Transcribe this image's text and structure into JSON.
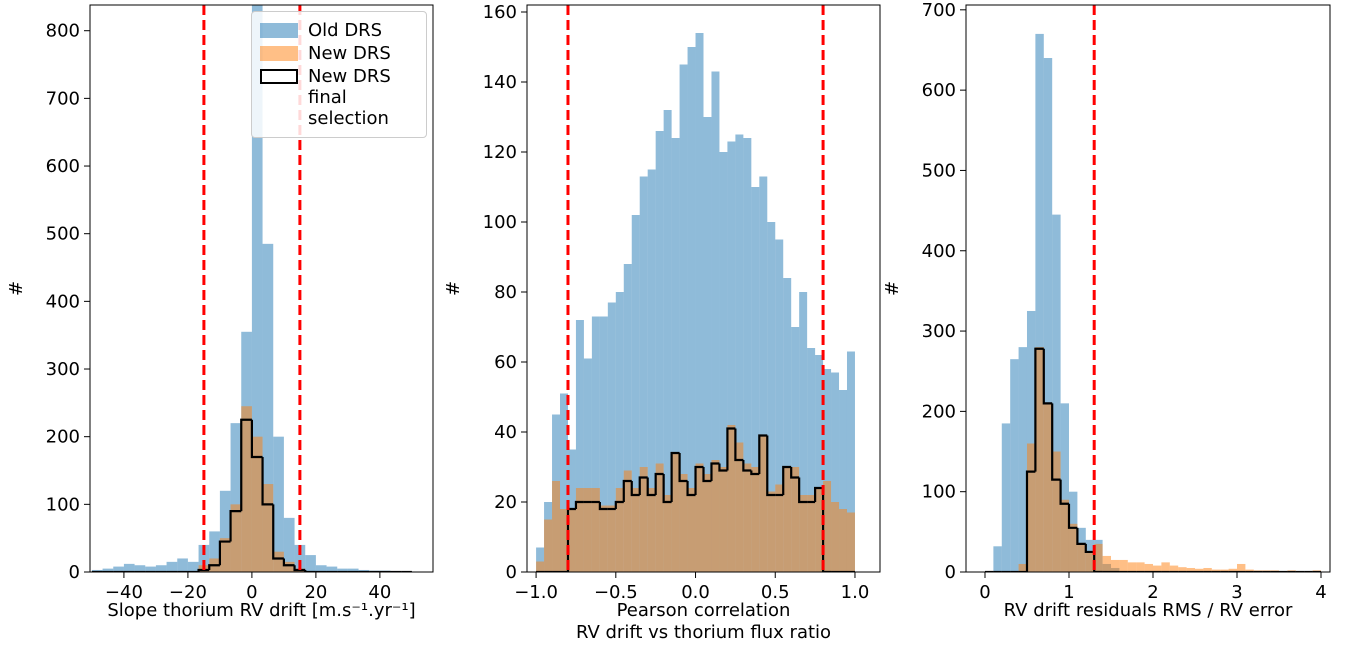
{
  "chart_data": [
    {
      "type": "histogram",
      "xlabel": "Slope thorium RV drift [m.s⁻¹.yr⁻¹]",
      "ylabel": "#",
      "xlim": [
        -50.6,
        56.6
      ],
      "ylim": [
        0,
        838
      ],
      "xticks": [
        {
          "value": -40,
          "label": "−40"
        },
        {
          "value": -20,
          "label": "−20"
        },
        0,
        20,
        40
      ],
      "yticks": [
        0,
        100,
        200,
        300,
        400,
        500,
        600,
        700,
        800
      ],
      "bins": [
        -50,
        -46.67,
        -43.33,
        -40,
        -36.67,
        -33.33,
        -30,
        -26.67,
        -23.33,
        -20,
        -16.67,
        -13.33,
        -10,
        -6.67,
        -3.33,
        0,
        3.33,
        6.67,
        10,
        13.33,
        16.67,
        20,
        23.33,
        26.67,
        30,
        33.33,
        36.67,
        40,
        43.33,
        46.67,
        50
      ],
      "alpha": 0.5,
      "thresholds": [
        -15,
        15
      ],
      "threshold_color": "#ff0000",
      "legend": "upper right",
      "series": [
        {
          "name": "Old DRS",
          "color": "#1f77b4",
          "style": "filled",
          "values": [
            3,
            5,
            8,
            12,
            10,
            8,
            10,
            15,
            20,
            15,
            40,
            60,
            120,
            220,
            355,
            838,
            485,
            200,
            80,
            40,
            25,
            10,
            8,
            5,
            5,
            3,
            2,
            2,
            1,
            1
          ]
        },
        {
          "name": "New DRS",
          "color": "#ff7f0e",
          "style": "filled",
          "values": [
            0,
            0,
            0,
            0,
            0,
            0,
            0,
            0,
            0,
            0,
            10,
            20,
            50,
            100,
            245,
            200,
            130,
            30,
            15,
            5,
            0,
            0,
            0,
            0,
            0,
            0,
            0,
            0,
            0,
            0
          ]
        },
        {
          "name": "New DRS final selection",
          "color": "#000000",
          "style": "step",
          "values": [
            0,
            0,
            0,
            0,
            0,
            0,
            0,
            0,
            0,
            0,
            3,
            10,
            45,
            90,
            225,
            170,
            100,
            20,
            10,
            3,
            0,
            0,
            0,
            0,
            0,
            0,
            0,
            0,
            0,
            0
          ]
        }
      ]
    },
    {
      "type": "histogram",
      "xlabel": [
        "Pearson correlation",
        "RV drift vs thorium flux ratio"
      ],
      "ylabel": "#",
      "xlim": [
        -1.057,
        1.157
      ],
      "ylim": [
        0,
        162
      ],
      "xticks": [
        {
          "value": -1,
          "label": "−1.0"
        },
        {
          "value": -0.5,
          "label": "−0.5"
        },
        {
          "value": 0,
          "label": "0.0"
        },
        0.5,
        {
          "value": 1,
          "label": "1.0"
        }
      ],
      "yticks": [
        0,
        20,
        40,
        60,
        80,
        100,
        120,
        140,
        160
      ],
      "bins": [
        -1,
        -0.95,
        -0.9,
        -0.85,
        -0.8,
        -0.75,
        -0.7,
        -0.65,
        -0.6,
        -0.55,
        -0.5,
        -0.45,
        -0.4,
        -0.35,
        -0.3,
        -0.25,
        -0.2,
        -0.15,
        -0.1,
        -0.05,
        0,
        0.05,
        0.1,
        0.15,
        0.2,
        0.25,
        0.3,
        0.35,
        0.4,
        0.45,
        0.5,
        0.55,
        0.6,
        0.65,
        0.7,
        0.75,
        0.8,
        0.85,
        0.9,
        0.95,
        1
      ],
      "alpha": 0.5,
      "thresholds": [
        -0.8,
        0.8
      ],
      "threshold_color": "#ff0000",
      "series": [
        {
          "name": "Old DRS",
          "color": "#1f77b4",
          "style": "filled",
          "values": [
            7,
            20,
            45,
            51,
            35,
            72,
            61,
            73,
            73,
            77,
            80,
            88,
            102,
            113,
            115,
            126,
            132,
            124,
            145,
            150,
            154,
            130,
            143,
            120,
            123,
            125,
            124,
            110,
            113,
            100,
            95,
            84,
            70,
            80,
            64,
            62,
            58,
            57,
            52,
            63
          ]
        },
        {
          "name": "New DRS",
          "color": "#ff7f0e",
          "style": "filled",
          "values": [
            3,
            15,
            26,
            18,
            18,
            24,
            24,
            24,
            19,
            19,
            24,
            29,
            24,
            30,
            24,
            31,
            22,
            34,
            28,
            24,
            31,
            28,
            32,
            30,
            42,
            37,
            31,
            30,
            39,
            23,
            25,
            30,
            30,
            22,
            22,
            24,
            26,
            20,
            18,
            17
          ]
        },
        {
          "name": "New DRS final selection",
          "color": "#000000",
          "style": "step",
          "values": [
            0,
            0,
            0,
            0,
            18,
            20,
            20,
            20,
            18,
            18,
            20,
            26,
            22,
            27,
            22,
            28,
            20,
            34,
            26,
            22,
            30,
            26,
            31,
            29,
            41,
            32,
            29,
            28,
            39,
            22,
            22,
            30,
            27,
            20,
            20,
            24,
            0,
            0,
            0,
            0
          ]
        }
      ]
    },
    {
      "type": "histogram",
      "xlabel": "RV drift residuals RMS / RV error",
      "ylabel": "#",
      "xlim": [
        -0.226,
        4.107
      ],
      "ylim": [
        0,
        706
      ],
      "xticks": [
        0,
        1,
        2,
        3,
        4
      ],
      "yticks": [
        0,
        100,
        200,
        300,
        400,
        500,
        600,
        700
      ],
      "bins": [
        0,
        0.1,
        0.2,
        0.3,
        0.4,
        0.5,
        0.6,
        0.7,
        0.8,
        0.9,
        1,
        1.1,
        1.2,
        1.3,
        1.4,
        1.5,
        1.6,
        1.7,
        1.8,
        1.9,
        2,
        2.1,
        2.2,
        2.3,
        2.4,
        2.5,
        2.6,
        2.7,
        2.8,
        2.9,
        3,
        3.1,
        3.2,
        3.3,
        3.4,
        3.5,
        3.6,
        3.7,
        3.8,
        3.9,
        4
      ],
      "alpha": 0.5,
      "thresholds": [
        1.3
      ],
      "threshold_color": "#ff0000",
      "series": [
        {
          "name": "Old DRS",
          "color": "#1f77b4",
          "style": "filled",
          "values": [
            0,
            32,
            185,
            265,
            280,
            325,
            670,
            640,
            445,
            210,
            100,
            55,
            40,
            40,
            10,
            5,
            0,
            0,
            0,
            0,
            0,
            0,
            0,
            0,
            0,
            0,
            0,
            0,
            0,
            0,
            0,
            0,
            0,
            0,
            0,
            0,
            0,
            0,
            0,
            0
          ]
        },
        {
          "name": "New DRS",
          "color": "#ff7f0e",
          "style": "filled",
          "values": [
            0,
            0,
            0,
            0,
            10,
            160,
            280,
            210,
            150,
            90,
            60,
            35,
            25,
            35,
            20,
            15,
            15,
            12,
            12,
            10,
            8,
            12,
            8,
            6,
            5,
            4,
            5,
            3,
            3,
            4,
            10,
            3,
            2,
            2,
            2,
            1,
            2,
            1,
            0,
            2
          ]
        },
        {
          "name": "New DRS final selection",
          "color": "#000000",
          "style": "step",
          "values": [
            0,
            0,
            0,
            0,
            0,
            125,
            278,
            210,
            115,
            85,
            55,
            35,
            25,
            0,
            0,
            0,
            0,
            0,
            0,
            0,
            0,
            0,
            0,
            0,
            0,
            0,
            0,
            0,
            0,
            0,
            0,
            0,
            0,
            0,
            0,
            0,
            0,
            0,
            0,
            0
          ]
        }
      ]
    }
  ]
}
